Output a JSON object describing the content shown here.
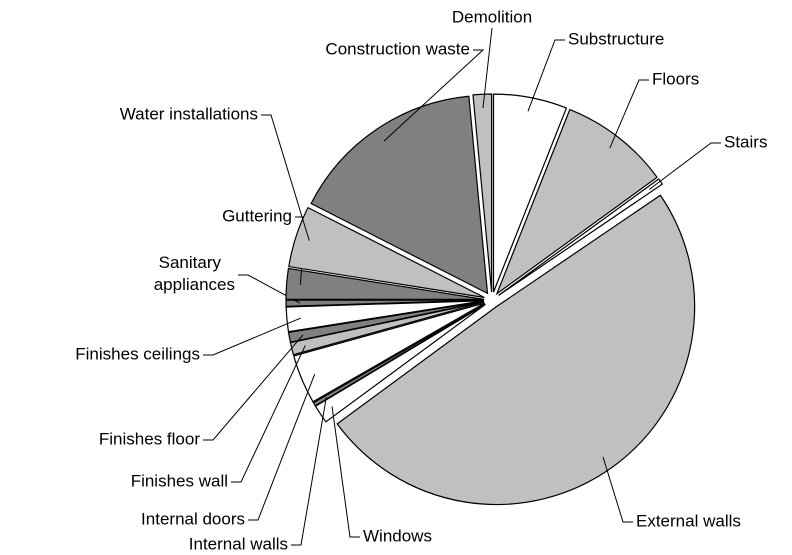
{
  "chart_data": {
    "type": "pie",
    "categories": [
      "Substructure",
      "Floors",
      "Stairs",
      "External walls",
      "Windows",
      "Internal walls",
      "Internal doors",
      "Finishes wall",
      "Finishes floor",
      "Finishes ceilings",
      "Sanitary appliances",
      "Guttering",
      "Water installations",
      "Construction waste",
      "Demolition"
    ],
    "values": [
      6,
      9,
      0.5,
      49.4,
      1.5,
      0.3,
      4,
      1,
      0.8,
      2,
      0.5,
      2.5,
      5,
      16,
      1.5
    ],
    "colors": [
      "#ffffff",
      "#c0c0c0",
      "#ffffff",
      "#c0c0c0",
      "#ffffff",
      "#808080",
      "#ffffff",
      "#c0c0c0",
      "#808080",
      "#ffffff",
      "#808080",
      "#808080",
      "#c0c0c0",
      "#808080",
      "#c0c0c0"
    ]
  }
}
